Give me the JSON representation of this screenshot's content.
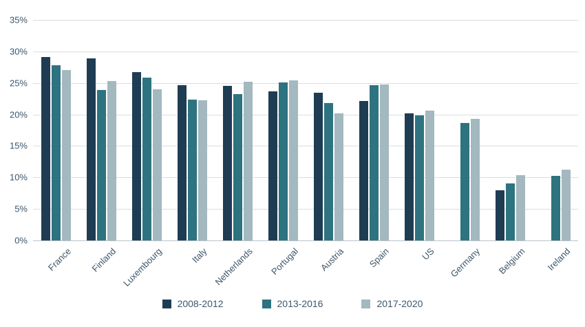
{
  "chart_data": {
    "type": "bar",
    "categories": [
      "France",
      "Finland",
      "Luxembourg",
      "Italy",
      "Netherlands",
      "Portugal",
      "Austria",
      "Spain",
      "US",
      "Germany",
      "Belgium",
      "Ireland"
    ],
    "series": [
      {
        "name": "2008-2012",
        "color": "#1e3d53",
        "values": [
          29.1,
          28.9,
          26.7,
          24.6,
          24.5,
          23.7,
          23.4,
          22.1,
          20.2,
          null,
          8.0,
          null
        ]
      },
      {
        "name": "2013-2016",
        "color": "#2e7380",
        "values": [
          27.8,
          23.9,
          25.8,
          22.3,
          23.2,
          25.1,
          21.8,
          24.6,
          19.8,
          18.7,
          9.0,
          10.2
        ]
      },
      {
        "name": "2017-2020",
        "color": "#a3b8bf",
        "values": [
          27.0,
          25.3,
          24.0,
          22.2,
          25.2,
          25.4,
          20.2,
          24.7,
          20.6,
          19.3,
          10.4,
          11.2
        ]
      }
    ],
    "ylim": [
      0,
      35
    ],
    "ytick_step": 5,
    "ytick_labels": [
      "0%",
      "5%",
      "10%",
      "15%",
      "20%",
      "25%",
      "30%",
      "35%"
    ],
    "grid": true,
    "legend_position": "bottom"
  },
  "colors": {
    "axis_text": "#3d566a",
    "gridline": "#d9dde1",
    "baseline": "#b9c2c9",
    "background": "#ffffff"
  }
}
